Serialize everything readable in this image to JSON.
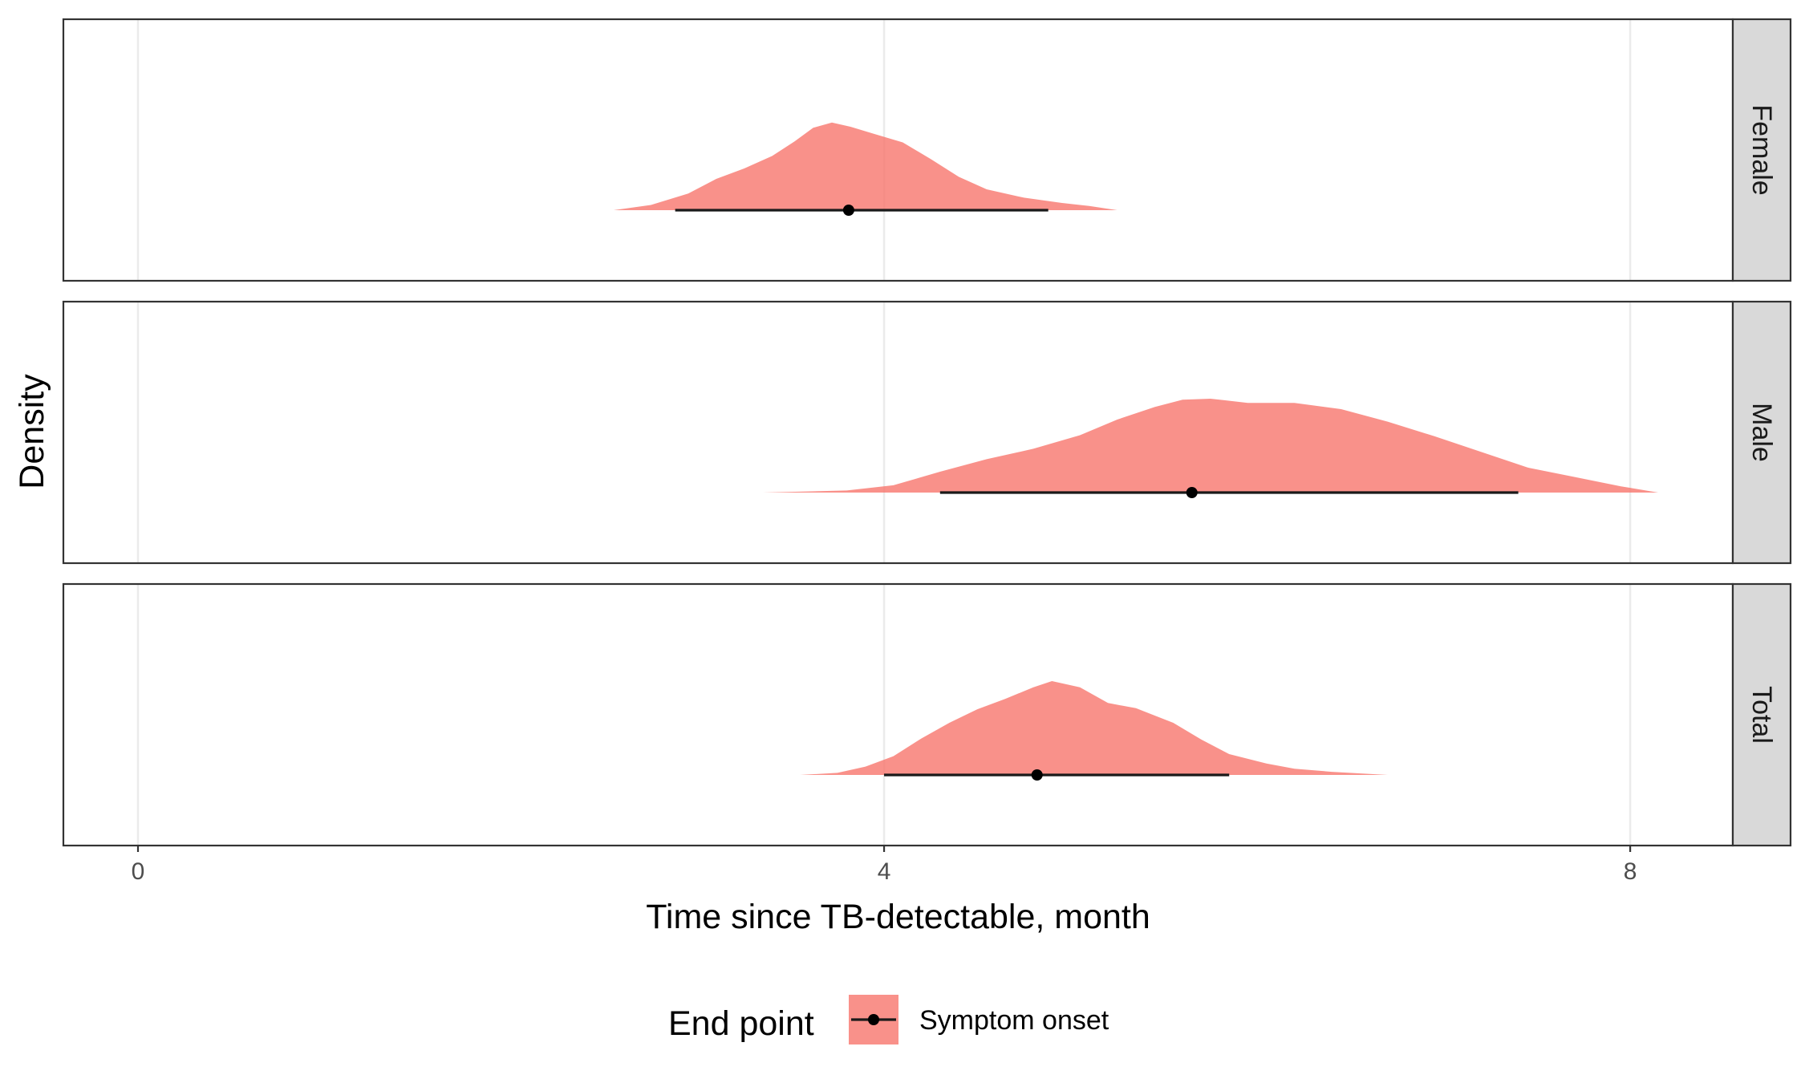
{
  "chart_data": {
    "type": "density",
    "xlabel": "Time since TB-detectable, month",
    "ylabel": "Density",
    "xlim": [
      -0.4,
      8.55
    ],
    "x_ticks": [
      0,
      4,
      8
    ],
    "x_tick_labels": [
      "0",
      "4",
      "8"
    ],
    "grid": true,
    "fill_color": "#F8766D",
    "legend": {
      "position": "bottom",
      "title": "End point",
      "entries": [
        "Symptom onset"
      ]
    },
    "panels": [
      {
        "label": "Female",
        "density": {
          "x": [
            2.55,
            2.75,
            2.95,
            3.1,
            3.25,
            3.4,
            3.52,
            3.62,
            3.72,
            3.82,
            3.95,
            4.1,
            4.25,
            4.4,
            4.55,
            4.75,
            4.95,
            5.1,
            5.25
          ],
          "y": [
            0.0,
            0.05,
            0.16,
            0.3,
            0.4,
            0.52,
            0.66,
            0.79,
            0.84,
            0.8,
            0.73,
            0.65,
            0.49,
            0.32,
            0.2,
            0.12,
            0.07,
            0.04,
            0.0
          ]
        },
        "point": 3.81,
        "interval": [
          2.88,
          4.88
        ]
      },
      {
        "label": "Male",
        "density": {
          "x": [
            3.35,
            3.8,
            4.05,
            4.3,
            4.55,
            4.8,
            5.05,
            5.25,
            5.45,
            5.6,
            5.75,
            5.95,
            6.2,
            6.45,
            6.7,
            6.95,
            7.2,
            7.45,
            7.7,
            7.95,
            8.15
          ],
          "y": [
            0.0,
            0.02,
            0.07,
            0.2,
            0.32,
            0.42,
            0.55,
            0.7,
            0.82,
            0.89,
            0.9,
            0.86,
            0.86,
            0.8,
            0.68,
            0.54,
            0.39,
            0.24,
            0.15,
            0.06,
            0.0
          ]
        },
        "point": 5.65,
        "interval": [
          4.3,
          7.4
        ]
      },
      {
        "label": "Total",
        "density": {
          "x": [
            3.55,
            3.75,
            3.9,
            4.05,
            4.2,
            4.35,
            4.5,
            4.65,
            4.8,
            4.9,
            5.05,
            5.2,
            5.35,
            5.55,
            5.7,
            5.85,
            6.05,
            6.2,
            6.4,
            6.7
          ],
          "y": [
            0.0,
            0.02,
            0.08,
            0.18,
            0.35,
            0.5,
            0.63,
            0.73,
            0.84,
            0.9,
            0.84,
            0.69,
            0.64,
            0.5,
            0.34,
            0.2,
            0.11,
            0.06,
            0.03,
            0.0
          ]
        },
        "point": 4.82,
        "interval": [
          4.0,
          5.85
        ]
      }
    ]
  }
}
